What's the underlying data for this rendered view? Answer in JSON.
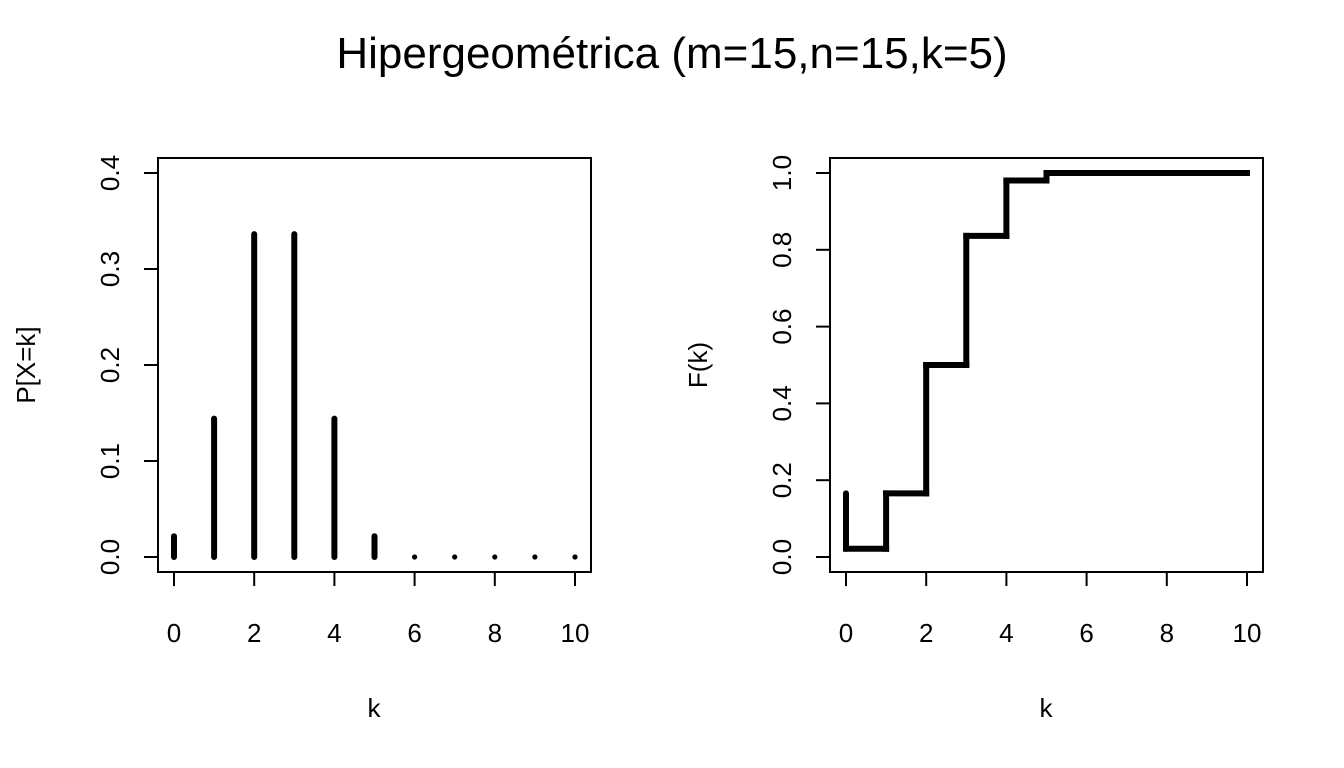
{
  "figure": {
    "title": "Hipergeométrica (m=15,n=15,k=5)"
  },
  "chart_data": [
    {
      "type": "bar",
      "style": "vertical-lines (type h)",
      "xlabel": "k",
      "ylabel": "P[X=k]",
      "x": [
        0,
        1,
        2,
        3,
        4,
        5,
        6,
        7,
        8,
        9,
        10
      ],
      "values": [
        0.0216,
        0.1441,
        0.3363,
        0.3363,
        0.1441,
        0.0216,
        0,
        0,
        0,
        0,
        0
      ],
      "xlim": [
        0,
        10
      ],
      "ylim": [
        0,
        0.4
      ],
      "xticks": [
        "0",
        "2",
        "4",
        "6",
        "8",
        "10"
      ],
      "yticks": [
        "0.0",
        "0.1",
        "0.2",
        "0.3",
        "0.4"
      ],
      "grid": false,
      "color": "#000000"
    },
    {
      "type": "line",
      "style": "step",
      "xlabel": "k",
      "ylabel": "F(k)",
      "x": [
        0,
        1,
        2,
        3,
        4,
        5,
        6,
        7,
        8,
        9,
        10
      ],
      "values": [
        0.0216,
        0.1657,
        0.5,
        0.8363,
        0.9804,
        1.0,
        1.0,
        1.0,
        1.0,
        1.0,
        1.0
      ],
      "xlim": [
        0,
        10
      ],
      "ylim": [
        0,
        1
      ],
      "xticks": [
        "0",
        "2",
        "4",
        "6",
        "8",
        "10"
      ],
      "yticks": [
        "0.0",
        "0.2",
        "0.4",
        "0.6",
        "0.8",
        "1.0"
      ],
      "grid": false,
      "color": "#000000"
    }
  ]
}
